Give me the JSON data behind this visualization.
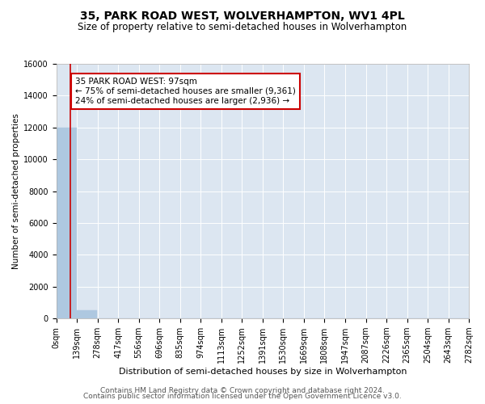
{
  "title": "35, PARK ROAD WEST, WOLVERHAMPTON, WV1 4PL",
  "subtitle": "Size of property relative to semi-detached houses in Wolverhampton",
  "xlabel": "Distribution of semi-detached houses by size in Wolverhampton",
  "ylabel": "Number of semi-detached properties",
  "footer_line1": "Contains HM Land Registry data © Crown copyright and database right 2024.",
  "footer_line2": "Contains public sector information licensed under the Open Government Licence v3.0.",
  "bin_edges": [
    0,
    139,
    278,
    417,
    556,
    696,
    835,
    974,
    1113,
    1252,
    1391,
    1530,
    1669,
    1808,
    1947,
    2087,
    2226,
    2365,
    2504,
    2643,
    2782
  ],
  "bin_labels": [
    "0sqm",
    "139sqm",
    "278sqm",
    "417sqm",
    "556sqm",
    "696sqm",
    "835sqm",
    "974sqm",
    "1113sqm",
    "1252sqm",
    "1391sqm",
    "1530sqm",
    "1669sqm",
    "1808sqm",
    "1947sqm",
    "2087sqm",
    "2226sqm",
    "2365sqm",
    "2504sqm",
    "2643sqm",
    "2782sqm"
  ],
  "bar_heights": [
    12000,
    500,
    0,
    0,
    0,
    0,
    0,
    0,
    0,
    0,
    0,
    0,
    0,
    0,
    0,
    0,
    0,
    0,
    0,
    0
  ],
  "bar_color": "#aec8e0",
  "property_size": 97,
  "property_name": "35 PARK ROAD WEST: 97sqm",
  "pct_smaller": 75,
  "n_smaller": 9361,
  "pct_larger": 24,
  "n_larger": 2936,
  "vline_color": "#cc0000",
  "annotation_box_color": "#cc0000",
  "ylim": [
    0,
    16000
  ],
  "yticks": [
    0,
    2000,
    4000,
    6000,
    8000,
    10000,
    12000,
    14000,
    16000
  ],
  "background_color": "#dce6f1",
  "grid_color": "#ffffff",
  "fig_bg_color": "#ffffff",
  "title_fontsize": 10,
  "subtitle_fontsize": 8.5,
  "xlabel_fontsize": 8,
  "ylabel_fontsize": 7.5,
  "tick_fontsize": 7,
  "annotation_fontsize": 7.5,
  "footer_fontsize": 6.5
}
